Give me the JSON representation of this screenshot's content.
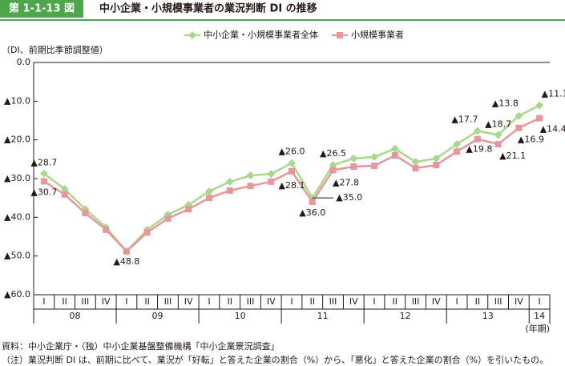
{
  "chart_data": {
    "type": "line",
    "figure_label": "第 1-1-13 図",
    "title": "中小企業・小規模事業者の業況判断 DI の推移",
    "y_label": "（DI、前期比季節調整値）",
    "x_label": "(年期)",
    "categories": [
      "I",
      "II",
      "III",
      "IV",
      "I",
      "II",
      "III",
      "IV",
      "I",
      "II",
      "III",
      "IV",
      "I",
      "II",
      "III",
      "IV",
      "I",
      "II",
      "III",
      "IV",
      "I",
      "II",
      "III",
      "IV",
      "I"
    ],
    "year_labels": [
      "08",
      "09",
      "10",
      "11",
      "12",
      "13",
      "14"
    ],
    "ylim": [
      -60,
      0
    ],
    "yticks": [
      {
        "value": 0,
        "label": "0.0"
      },
      {
        "value": -10,
        "label": "▲10.0"
      },
      {
        "value": -20,
        "label": "▲20.0"
      },
      {
        "value": -30,
        "label": "▲30.0"
      },
      {
        "value": -40,
        "label": "▲40.0"
      },
      {
        "value": -50,
        "label": "▲50.0"
      },
      {
        "value": -60,
        "label": "▲60.0"
      }
    ],
    "series": [
      {
        "name": "中小企業・小規模事業者全体",
        "color": "#a9d88c",
        "marker": "diamond",
        "values": [
          -28.7,
          -32.7,
          -37.9,
          -42.6,
          -48.8,
          -43.2,
          -39.3,
          -36.8,
          -33.3,
          -30.8,
          -29.2,
          -28.8,
          -26.0,
          -35.0,
          -26.5,
          -24.8,
          -24.4,
          -22.3,
          -25.7,
          -24.8,
          -21.1,
          -17.7,
          -18.7,
          -13.8,
          -11.1
        ],
        "value_labels": [
          "▲28.7",
          null,
          null,
          null,
          "▲48.8",
          null,
          null,
          null,
          null,
          null,
          null,
          null,
          "▲26.0",
          "▲35.0",
          "▲26.5",
          null,
          null,
          null,
          null,
          null,
          null,
          "▲17.7",
          "▲18.7",
          "▲13.8",
          "▲11.1"
        ]
      },
      {
        "name": "小規模事業者",
        "color": "#e8969b",
        "marker": "square",
        "values": [
          -30.7,
          -34.1,
          -38.9,
          -43.2,
          -48.8,
          -43.9,
          -40.3,
          -37.9,
          -35.0,
          -33.1,
          -31.9,
          -30.8,
          -28.1,
          -36.0,
          -27.8,
          -26.9,
          -26.7,
          -24.0,
          -27.3,
          -26.5,
          -23.0,
          -19.8,
          -21.1,
          -16.9,
          -14.4
        ],
        "value_labels": [
          "▲30.7",
          null,
          null,
          null,
          null,
          null,
          null,
          null,
          null,
          null,
          null,
          null,
          "▲28.1",
          "▲36.0",
          "▲27.8",
          null,
          null,
          null,
          null,
          null,
          null,
          "▲19.8",
          "▲21.1",
          "▲16.9",
          "▲14.4"
        ]
      }
    ],
    "notes": [
      "資料：中小企業庁・（独）中小企業基盤整備機構「中小企業景況調査」",
      "（注）業況判断 DI は、前期に比べて、業況が「好転」と答えた企業の割合（%）から、「悪化」と答えた企業の割合（%）を引いたもの。"
    ]
  }
}
